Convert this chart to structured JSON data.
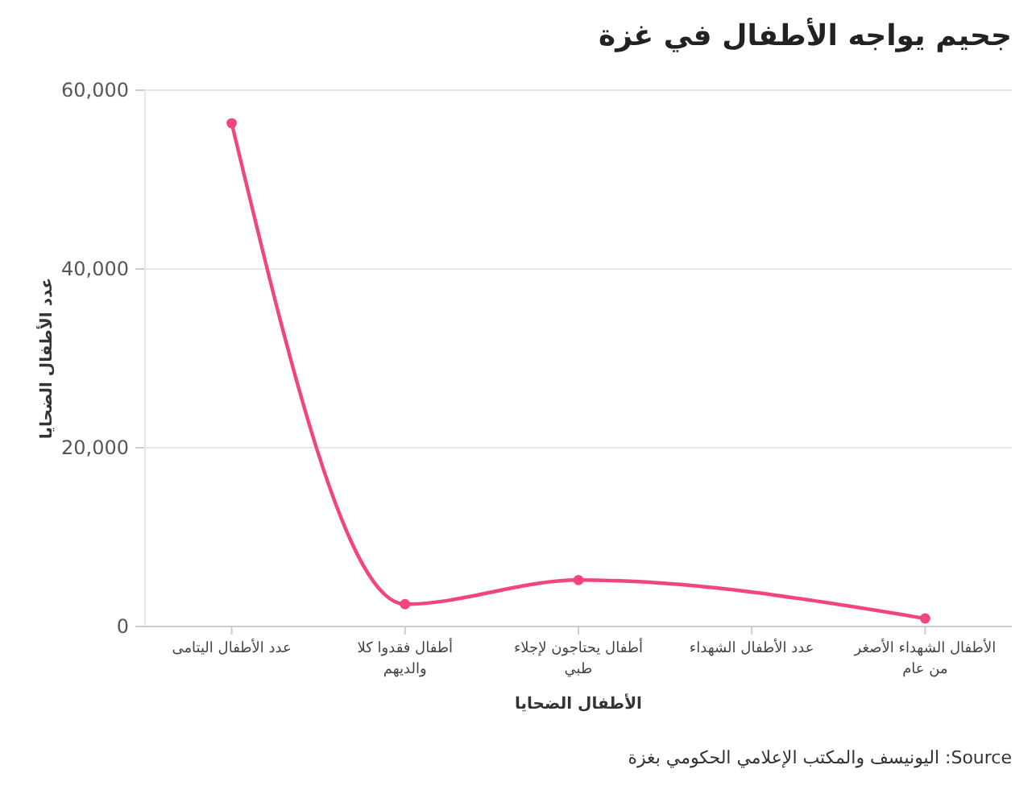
{
  "chart_data": {
    "type": "line",
    "title": "جحيم يواجه الأطفال في غزة",
    "xlabel": "الأطفال الضحايا",
    "ylabel": "عدد الأطفال الضحايا",
    "categories": [
      "عدد الأطفال اليتامى",
      "أطفال فقدوا كلا والديهم",
      "أطفال يحتاجون لإجلاء طبي",
      "عدد الأطفال الشهداء",
      "الأطفال الشهداء الأصغر من عام"
    ],
    "series": [
      {
        "color": "#f0457f",
        "values": [
          56300,
          2500,
          5200,
          null,
          900
        ]
      }
    ],
    "ylim": [
      0,
      60000
    ],
    "yticks": [
      {
        "value": 0,
        "label": "0"
      },
      {
        "value": 20000,
        "label": "20,000"
      },
      {
        "value": 40000,
        "label": "40,000"
      },
      {
        "value": 60000,
        "label": "60,000"
      }
    ],
    "grid": true,
    "marker": "circle",
    "line_style": "solid",
    "annotations": [
      "Source: اليونيسف والمكتب الإعلامي الحكومي بغزة"
    ]
  }
}
